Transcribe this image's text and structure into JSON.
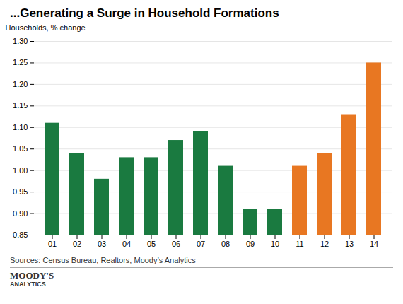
{
  "chart_data": {
    "type": "bar",
    "title": "...Generating a Surge in Household Formations",
    "ylabel": "Households, % change",
    "annotations": [
      "Sources: Census Bureau, Realtors, Moody’s Analytics",
      "MOODY'S",
      "ANALYTICS"
    ],
    "categories": [
      "01",
      "02",
      "03",
      "04",
      "05",
      "06",
      "07",
      "08",
      "09",
      "10",
      "11",
      "12",
      "13",
      "14"
    ],
    "values": [
      1.11,
      1.04,
      0.98,
      1.03,
      1.03,
      1.07,
      1.09,
      1.01,
      0.91,
      0.91,
      1.01,
      1.04,
      1.13,
      1.25
    ],
    "colors": [
      "#1a7a40",
      "#1a7a40",
      "#1a7a40",
      "#1a7a40",
      "#1a7a40",
      "#1a7a40",
      "#1a7a40",
      "#1a7a40",
      "#1a7a40",
      "#1a7a40",
      "#e87722",
      "#e87722",
      "#e87722",
      "#e87722"
    ],
    "ylim": [
      0.85,
      1.3
    ],
    "yticks": [
      0.85,
      {
        "value": 0.9,
        "label": "0.90"
      },
      0.95,
      {
        "value": 1.0,
        "label": "1.00"
      },
      1.05,
      {
        "value": 1.1,
        "label": "1.10"
      },
      1.15,
      {
        "value": 1.2,
        "label": "1.20"
      },
      1.25,
      {
        "value": 1.3,
        "label": "1.30"
      }
    ],
    "grid": true
  }
}
